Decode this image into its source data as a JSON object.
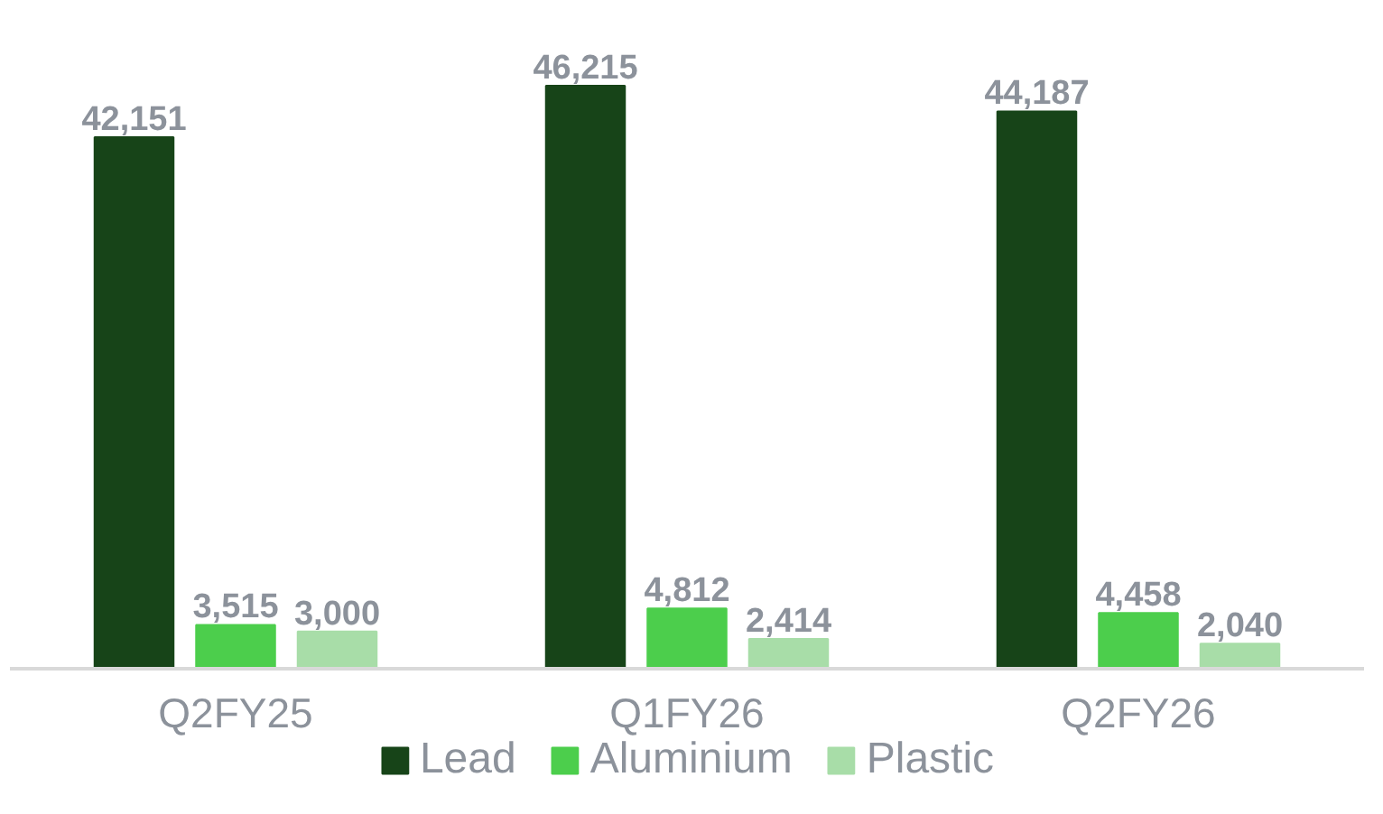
{
  "chart_data": {
    "type": "bar",
    "categories": [
      "Q2FY25",
      "Q1FY26",
      "Q2FY26"
    ],
    "series": [
      {
        "name": "Lead",
        "color": "#174418",
        "values": [
          42151,
          46215,
          44187
        ],
        "value_labels": [
          "42,151",
          "46,215",
          "44,187"
        ]
      },
      {
        "name": "Aluminium",
        "color": "#4cce4c",
        "values": [
          3515,
          4812,
          4458
        ],
        "value_labels": [
          "3,515",
          "4,812",
          "4,458"
        ]
      },
      {
        "name": "Plastic",
        "color": "#a8dda8",
        "values": [
          3000,
          2414,
          2040
        ],
        "value_labels": [
          "3,000",
          "2,414",
          "2,040"
        ]
      }
    ],
    "legend": "bottom"
  }
}
